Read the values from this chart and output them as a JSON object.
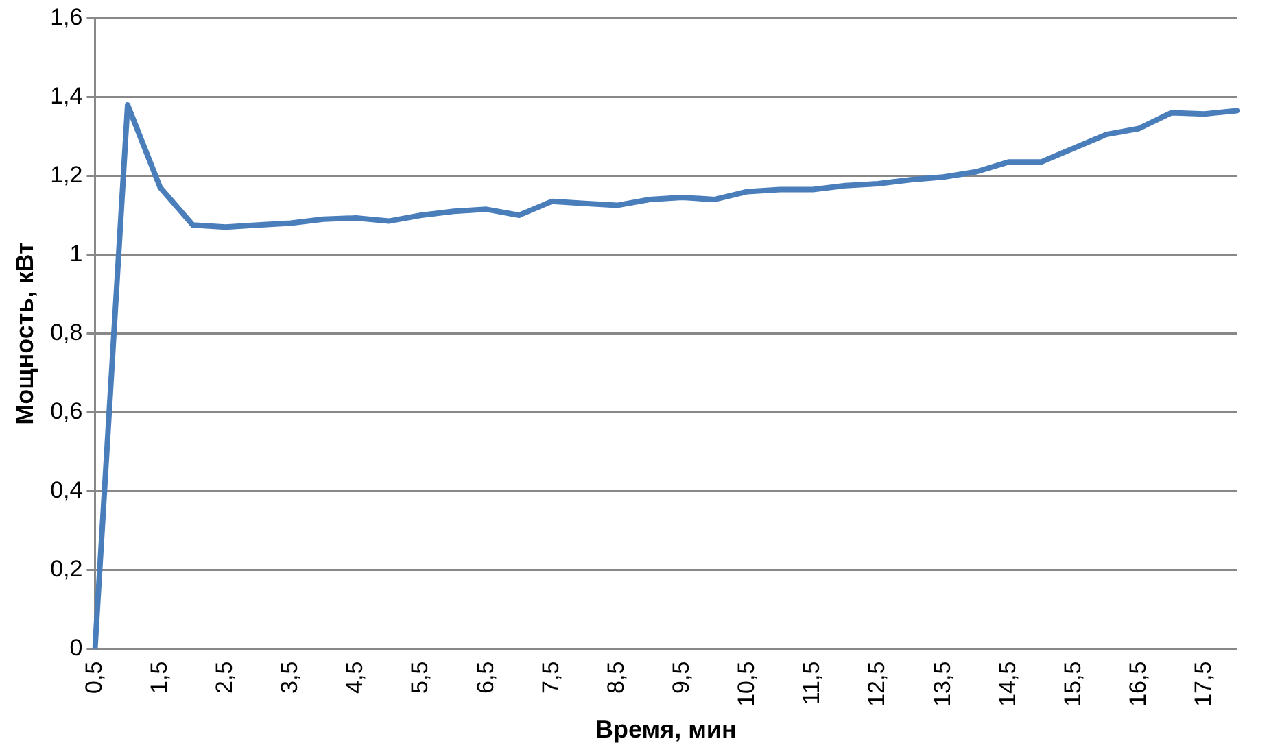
{
  "chart_data": {
    "type": "line",
    "xlabel": "Время, мин",
    "ylabel": "Мощность, кВт",
    "categories": [
      "0,5",
      null,
      "1,5",
      null,
      "2,5",
      null,
      "3,5",
      null,
      "4,5",
      null,
      "5,5",
      null,
      "6,5",
      null,
      "7,5",
      null,
      "8,5",
      null,
      "9,5",
      null,
      "10,5",
      null,
      "11,5",
      null,
      "12,5",
      null,
      "13,5",
      null,
      "14,5",
      null,
      "15,5",
      null,
      "16,5",
      null,
      "17,5",
      null
    ],
    "series": [
      {
        "color": "#4a7ebb",
        "values": [
          0,
          1.38,
          1.17,
          1.075,
          1.07,
          1.075,
          1.08,
          1.09,
          1.093,
          1.085,
          1.1,
          1.11,
          1.115,
          1.1,
          1.135,
          1.13,
          1.125,
          1.14,
          1.145,
          1.14,
          1.16,
          1.165,
          1.165,
          1.175,
          1.18,
          1.19,
          1.197,
          1.21,
          1.235,
          1.235,
          1.27,
          1.305,
          1.32,
          1.36,
          1.357,
          1.365
        ]
      }
    ],
    "ylim": [
      0,
      1.6
    ],
    "yticks": [
      0,
      {
        "value": 0.2,
        "label": "0,2"
      },
      {
        "value": 0.4,
        "label": "0,4"
      },
      {
        "value": 0.6,
        "label": "0,6"
      },
      {
        "value": 0.8,
        "label": "0,8"
      },
      1,
      {
        "value": 1.2,
        "label": "1,2"
      },
      {
        "value": 1.4,
        "label": "1,4"
      },
      {
        "value": 1.6,
        "label": "1,6"
      }
    ],
    "grid": "y",
    "legend": false,
    "marker": "none",
    "line_style": "solid"
  }
}
